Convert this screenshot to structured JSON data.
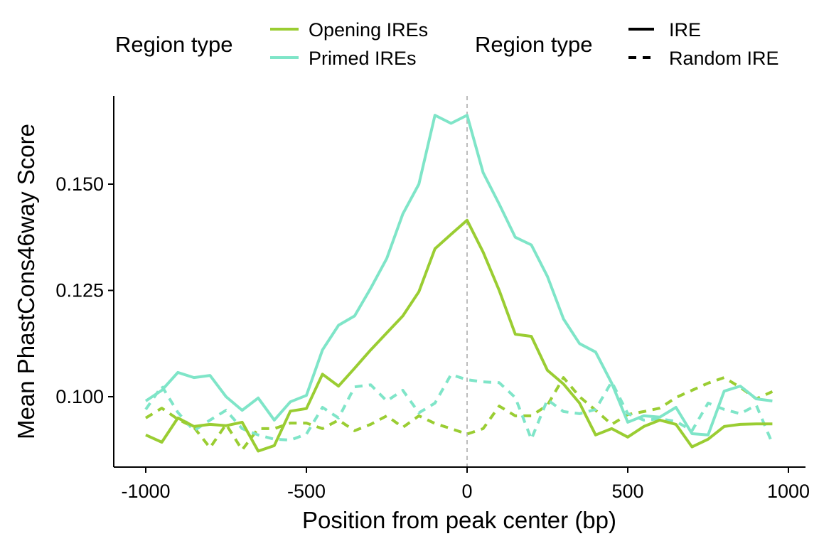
{
  "chart_data": {
    "type": "line",
    "title": "",
    "xlabel": "Position from peak center (bp)",
    "ylabel": "Mean PhastCons46way Score",
    "xlim": [
      -1000,
      1000
    ],
    "ylim": [
      0.085,
      0.17
    ],
    "x_ticks": [
      -1000,
      -500,
      0,
      500,
      1000
    ],
    "x_tick_labels": [
      "-1000",
      "-500",
      "0",
      "500",
      "1000"
    ],
    "y_ticks": [
      0.1,
      0.125,
      0.15
    ],
    "y_tick_labels": [
      "0.100",
      "0.125",
      "0.150"
    ],
    "grid": false,
    "vline": 0,
    "legend_position": "top",
    "legends": [
      {
        "title": "Region type",
        "entries": [
          {
            "label": "Opening IREs",
            "color": "#9ACD32",
            "line": "solid"
          },
          {
            "label": "Primed IREs",
            "color": "#7FE5C8",
            "line": "solid"
          }
        ]
      },
      {
        "title": "Region type",
        "entries": [
          {
            "label": "IRE",
            "color": "#000000",
            "line": "solid"
          },
          {
            "label": "Random IRE",
            "color": "#000000",
            "line": "dashed"
          }
        ]
      }
    ],
    "x": [
      -1000,
      -950,
      -900,
      -850,
      -800,
      -750,
      -700,
      -650,
      -600,
      -550,
      -500,
      -450,
      -400,
      -350,
      -300,
      -250,
      -200,
      -150,
      -100,
      -50,
      0,
      50,
      100,
      150,
      200,
      250,
      300,
      350,
      400,
      450,
      500,
      550,
      600,
      650,
      700,
      750,
      800,
      850,
      900,
      950
    ],
    "series": [
      {
        "group": "Opening IREs",
        "kind": "IRE",
        "color": "#9ACD32",
        "dash": false,
        "values": [
          0.091,
          0.0893,
          0.095,
          0.093,
          0.0935,
          0.0932,
          0.094,
          0.0872,
          0.0885,
          0.0966,
          0.0972,
          0.1053,
          0.1025,
          0.1067,
          0.111,
          0.115,
          0.119,
          0.1247,
          0.1348,
          0.1382,
          0.1415,
          0.134,
          0.125,
          0.1147,
          0.1142,
          0.1062,
          0.103,
          0.0985,
          0.091,
          0.0925,
          0.0905,
          0.093,
          0.0945,
          0.0935,
          0.0882,
          0.09,
          0.093,
          0.0935,
          0.0936,
          0.0936
        ]
      },
      {
        "group": "Primed IREs",
        "kind": "IRE",
        "color": "#7FE5C8",
        "dash": false,
        "values": [
          0.099,
          0.1015,
          0.1057,
          0.1045,
          0.105,
          0.1,
          0.0968,
          0.0997,
          0.0945,
          0.0988,
          0.1003,
          0.111,
          0.1168,
          0.119,
          0.1255,
          0.1325,
          0.143,
          0.15,
          0.1662,
          0.1643,
          0.1662,
          0.1527,
          0.1453,
          0.1375,
          0.1357,
          0.1283,
          0.1183,
          0.1125,
          0.1105,
          0.1032,
          0.094,
          0.0955,
          0.0952,
          0.0975,
          0.0913,
          0.091,
          0.1013,
          0.1025,
          0.0995,
          0.099
        ]
      },
      {
        "group": "Opening IREs",
        "kind": "Random IRE",
        "color": "#9ACD32",
        "dash": true,
        "values": [
          0.095,
          0.0973,
          0.0947,
          0.0928,
          0.088,
          0.0935,
          0.0875,
          0.0925,
          0.0925,
          0.0938,
          0.0938,
          0.0925,
          0.0945,
          0.092,
          0.0935,
          0.0955,
          0.0928,
          0.0955,
          0.0937,
          0.0925,
          0.0912,
          0.0925,
          0.0978,
          0.0955,
          0.0955,
          0.098,
          0.1045,
          0.1,
          0.0968,
          0.0935,
          0.0958,
          0.0965,
          0.0973,
          0.0998,
          0.1015,
          0.1032,
          0.1045,
          0.1022,
          0.0995,
          0.1012
        ]
      },
      {
        "group": "Primed IREs",
        "kind": "Random IRE",
        "color": "#7FE5C8",
        "dash": true,
        "values": [
          0.097,
          0.1025,
          0.0963,
          0.092,
          0.0945,
          0.0968,
          0.0925,
          0.091,
          0.09,
          0.0898,
          0.0912,
          0.0975,
          0.095,
          0.1023,
          0.1028,
          0.099,
          0.1015,
          0.0962,
          0.0985,
          0.1052,
          0.104,
          0.1035,
          0.1033,
          0.0998,
          0.09,
          0.0993,
          0.0965,
          0.096,
          0.097,
          0.1035,
          0.096,
          0.0945,
          0.0948,
          0.0942,
          0.092,
          0.0985,
          0.097,
          0.096,
          0.098,
          0.089
        ]
      }
    ]
  }
}
